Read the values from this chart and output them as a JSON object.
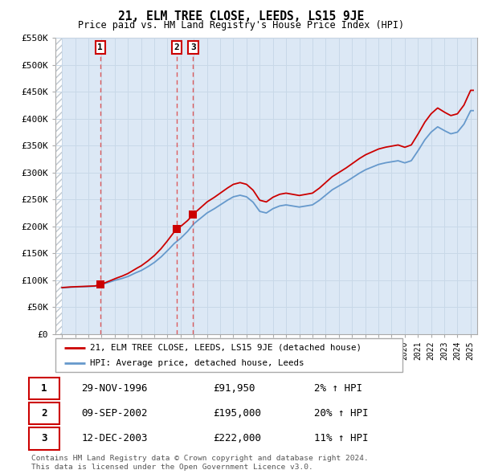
{
  "title": "21, ELM TREE CLOSE, LEEDS, LS15 9JE",
  "subtitle": "Price paid vs. HM Land Registry's House Price Index (HPI)",
  "property_line_label": "21, ELM TREE CLOSE, LEEDS, LS15 9JE (detached house)",
  "hpi_line_label": "HPI: Average price, detached house, Leeds",
  "footnote": "Contains HM Land Registry data © Crown copyright and database right 2024.\nThis data is licensed under the Open Government Licence v3.0.",
  "transactions": [
    {
      "num": 1,
      "date": "29-NOV-1996",
      "price": 91950,
      "year": 1996.9,
      "hpi_pct": "2% ↑ HPI"
    },
    {
      "num": 2,
      "date": "09-SEP-2002",
      "price": 195000,
      "year": 2002.7,
      "hpi_pct": "20% ↑ HPI"
    },
    {
      "num": 3,
      "date": "12-DEC-2003",
      "price": 222000,
      "year": 2003.95,
      "hpi_pct": "11% ↑ HPI"
    }
  ],
  "ylim": [
    0,
    550000
  ],
  "yticks": [
    0,
    50000,
    100000,
    150000,
    200000,
    250000,
    300000,
    350000,
    400000,
    450000,
    500000,
    550000
  ],
  "xlim_start": 1993.5,
  "xlim_end": 2025.5,
  "property_color": "#cc0000",
  "hpi_color": "#6699cc",
  "marker_color": "#cc0000",
  "dashed_line_color": "#dd4444",
  "grid_color": "#c8d8e8",
  "background_color": "#dce8f5",
  "hatch_color": "#c0c8d0"
}
